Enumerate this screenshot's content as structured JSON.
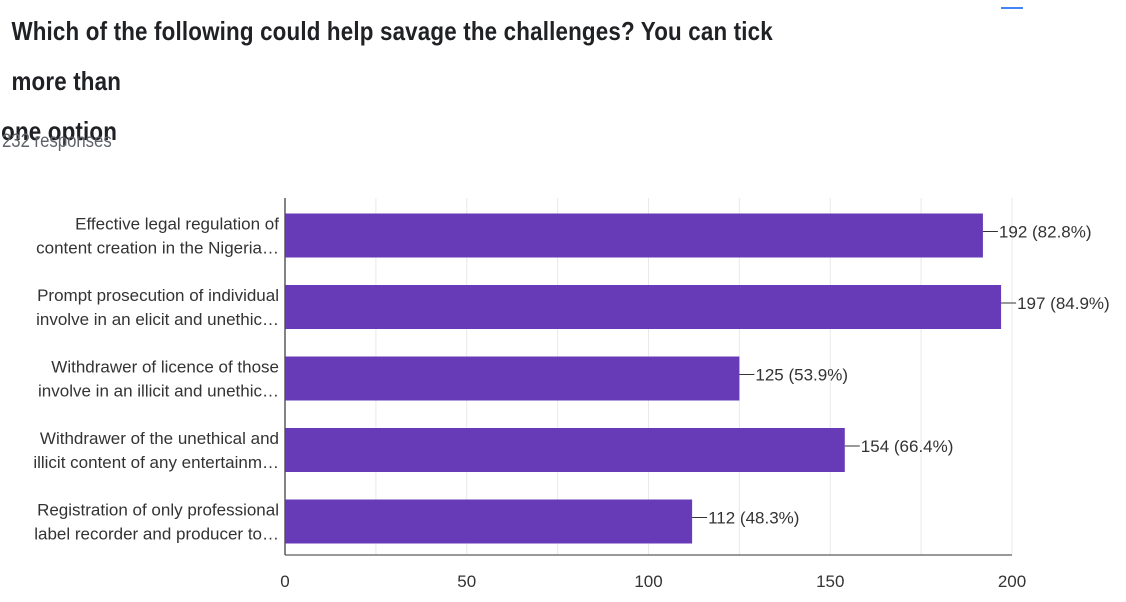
{
  "question": {
    "title_line1": "Which of the following could help savage the challenges? You can tick more than",
    "title_line2": "one option",
    "responses": "232 responses"
  },
  "colors": {
    "bar": "#673ab7",
    "grid": "#e9e9e9",
    "axis": "#333333",
    "label": "#333333"
  },
  "chart_data": {
    "type": "bar",
    "orientation": "horizontal",
    "categories": [
      [
        "Effective legal regulation of",
        "content creation in the Nigeria…"
      ],
      [
        "Prompt prosecution of individual",
        "involve in an elicit and unethic…"
      ],
      [
        "Withdrawer of licence of those",
        "involve in an illicit and unethic…"
      ],
      [
        "Withdrawer of the unethical and",
        "illicit content of any entertainm…"
      ],
      [
        "Registration of only professional",
        "label recorder and producer to…"
      ]
    ],
    "values": [
      192,
      197,
      125,
      154,
      112
    ],
    "data_labels": [
      "192 (82.8%)",
      "197 (84.9%)",
      "125 (53.9%)",
      "154 (66.4%)",
      "112 (48.3%)"
    ],
    "xlim": [
      0,
      200
    ],
    "xticks": [
      0,
      50,
      100,
      150,
      200
    ],
    "grid": true
  }
}
